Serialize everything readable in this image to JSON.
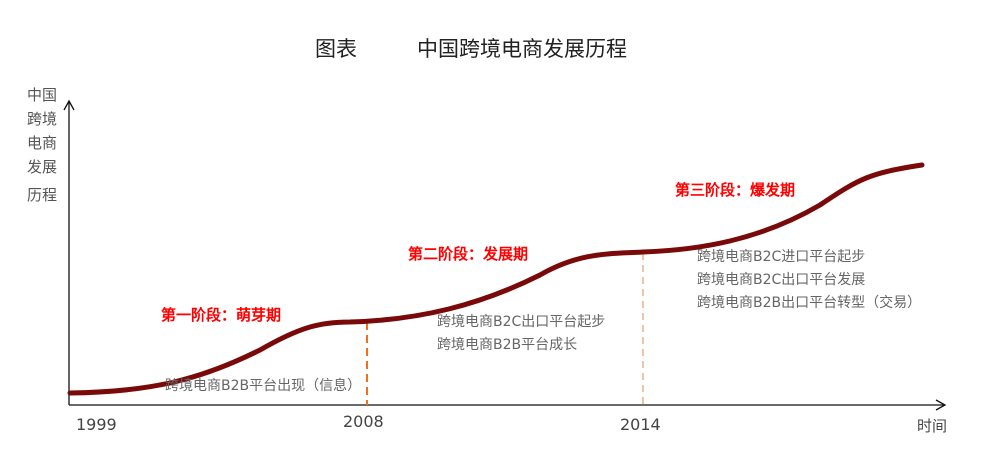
{
  "title": {
    "prefix": "图表",
    "text": "中国跨境电商发展历程"
  },
  "y_axis_label": [
    "中国",
    "跨境",
    "电商",
    "发展",
    "历程"
  ],
  "x_axis_label": "时间",
  "x_ticks": [
    "1999",
    "2008",
    "2014"
  ],
  "stages": [
    {
      "label": "第一阶段：萌芽期",
      "notes": [
        "跨境电商B2B平台出现（信息）"
      ]
    },
    {
      "label": "第二阶段：发展期",
      "notes": [
        "跨境电商B2C出口平台起步",
        "跨境电商B2B平台成长"
      ]
    },
    {
      "label": "第三阶段：爆发期",
      "notes": [
        "跨境电商B2C进口平台起步",
        "跨境电商B2C出口平台发展",
        "跨境电商B2B出口平台转型（交易）"
      ]
    }
  ],
  "colors": {
    "curve": "#7a0a0a",
    "stage_label": "#ff0000",
    "divider_2008": "#f07020",
    "divider_2014": "#e08a50"
  }
}
